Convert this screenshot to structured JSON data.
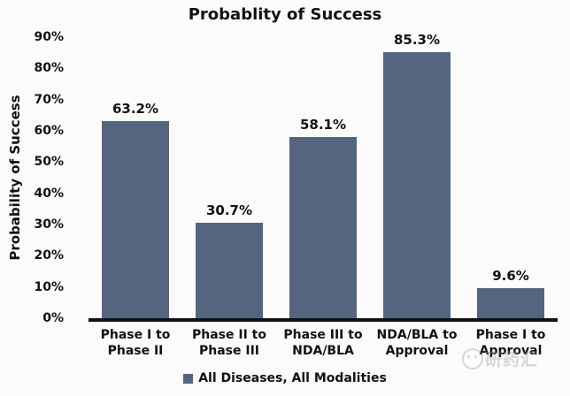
{
  "chart_data": {
    "type": "bar",
    "title": "Probablity of Success",
    "ylabel": "Probability of Success",
    "xlabel": "",
    "ylim": [
      0,
      90
    ],
    "ytick_interval": 10,
    "yticks": [
      "0%",
      "10%",
      "20%",
      "30%",
      "40%",
      "50%",
      "60%",
      "70%",
      "80%",
      "90%"
    ],
    "grid": false,
    "legend_position": "bottom",
    "categories": [
      "Phase I to\nPhase II",
      "Phase II to\nPhase III",
      "Phase III to\nNDA/BLA",
      "NDA/BLA to\nApproval",
      "Phase I to\nApproval"
    ],
    "series": [
      {
        "name": "All Diseases, All Modalities",
        "values": [
          63.2,
          30.7,
          58.1,
          85.3,
          9.6
        ]
      }
    ],
    "value_labels": [
      "63.2%",
      "30.7%",
      "58.1%",
      "85.3%",
      "9.6%"
    ]
  },
  "legend": {
    "label": "All Diseases, All Modalities"
  },
  "colors": {
    "bar": "#55647f",
    "axis_line": "#111111",
    "text": "#111111",
    "background": "#fbfbfb"
  },
  "watermark": {
    "text": "研药汇"
  }
}
